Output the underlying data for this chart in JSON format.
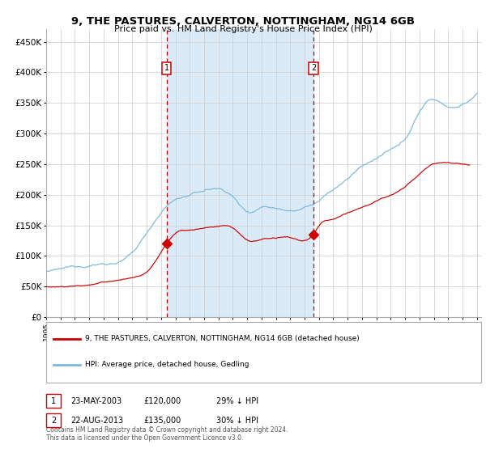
{
  "title_line1": "9, THE PASTURES, CALVERTON, NOTTINGHAM, NG14 6GB",
  "title_line2": "Price paid vs. HM Land Registry's House Price Index (HPI)",
  "ylim": [
    0,
    470000
  ],
  "yticks": [
    0,
    50000,
    100000,
    150000,
    200000,
    250000,
    300000,
    350000,
    400000,
    450000
  ],
  "ytick_labels": [
    "£0",
    "£50K",
    "£100K",
    "£150K",
    "£200K",
    "£250K",
    "£300K",
    "£350K",
    "£400K",
    "£450K"
  ],
  "year_start": 1995,
  "year_end": 2025,
  "hpi_color": "#7ab8d9",
  "price_color": "#cc0000",
  "shade_color": "#daeaf7",
  "vline_color": "#cc0000",
  "purchase1_year": 2003.38,
  "purchase1_price": 120000,
  "purchase2_year": 2013.63,
  "purchase2_price": 135000,
  "legend1": "9, THE PASTURES, CALVERTON, NOTTINGHAM, NG14 6GB (detached house)",
  "legend2": "HPI: Average price, detached house, Gedling",
  "note1_date": "23-MAY-2003",
  "note1_price": "£120,000",
  "note1_hpi": "29% ↓ HPI",
  "note2_date": "22-AUG-2013",
  "note2_price": "£135,000",
  "note2_hpi": "30% ↓ HPI",
  "footer": "Contains HM Land Registry data © Crown copyright and database right 2024.\nThis data is licensed under the Open Government Licence v3.0.",
  "hpi_key_years": [
    1995,
    1997,
    1999,
    2001,
    2003,
    2004,
    2005,
    2006,
    2007,
    2008,
    2009,
    2010,
    2011,
    2012,
    2013,
    2014,
    2015,
    2016,
    2017,
    2018,
    2019,
    2020,
    2021,
    2022,
    2023,
    2024,
    2025
  ],
  "hpi_key_vals": [
    75000,
    80000,
    88000,
    105000,
    172000,
    193000,
    200000,
    207000,
    210000,
    198000,
    174000,
    183000,
    183000,
    182000,
    188000,
    198000,
    215000,
    232000,
    252000,
    265000,
    277000,
    292000,
    338000,
    358000,
    348000,
    352000,
    368000
  ],
  "price_key_years": [
    1995,
    1997,
    1999,
    2001,
    2002,
    2003.38,
    2004,
    2005,
    2006,
    2007,
    2008,
    2009,
    2010,
    2011,
    2012,
    2013.63,
    2014,
    2015,
    2016,
    2017,
    2018,
    2019,
    2020,
    2021,
    2022,
    2023,
    2024,
    2024.5
  ],
  "price_key_vals": [
    50000,
    52000,
    57000,
    65000,
    75000,
    120000,
    138000,
    143000,
    147000,
    150000,
    147000,
    127000,
    128000,
    130000,
    129000,
    135000,
    148000,
    158000,
    168000,
    178000,
    188000,
    198000,
    210000,
    232000,
    248000,
    252000,
    250000,
    248000
  ]
}
